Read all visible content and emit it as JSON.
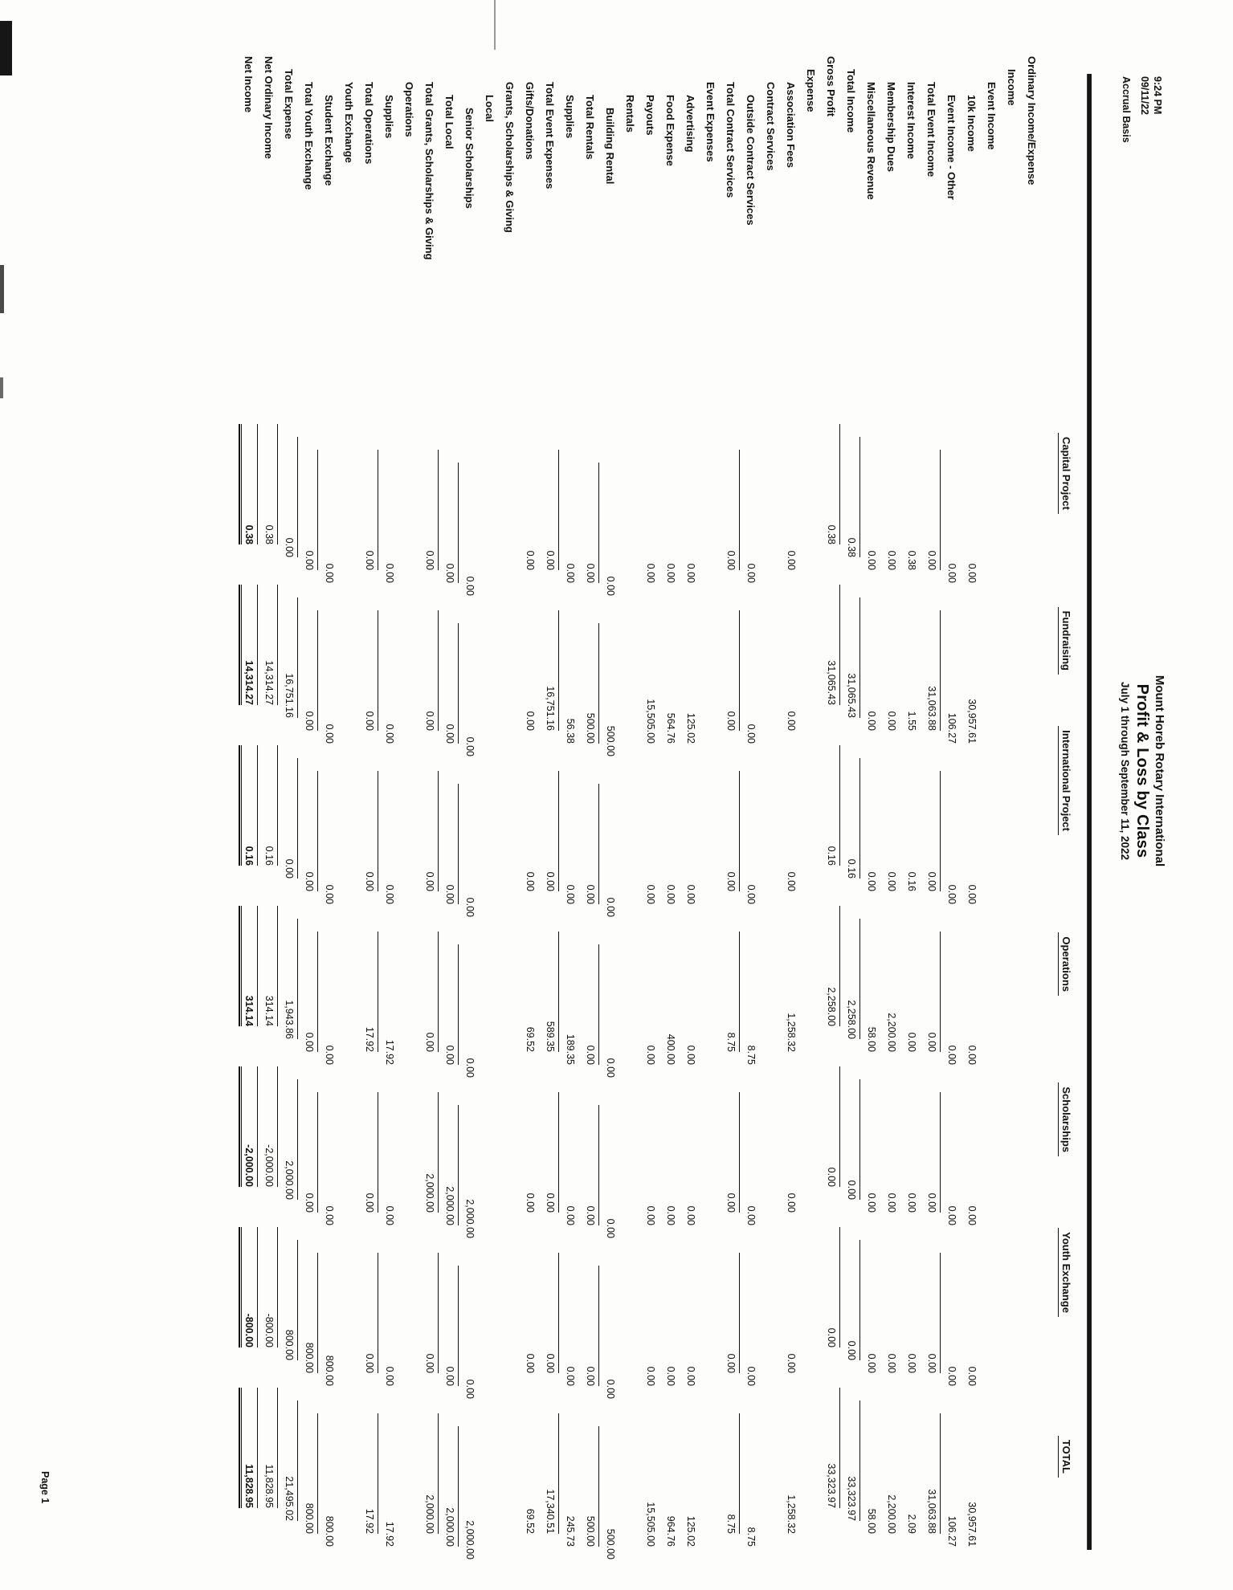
{
  "report": {
    "generated_time": "9:24 PM",
    "generated_date": "09/11/22",
    "basis": "Accrual Basis",
    "company": "Mount Horeb Rotary International",
    "title": "Profit & Loss by Class",
    "date_range": "July 1 through September 11, 2022",
    "page_label": "Page 1",
    "columns": [
      "Capital Project",
      "Fundraising",
      "International Project",
      "Operations",
      "Scholarships",
      "Youth Exchange",
      "TOTAL"
    ],
    "rows": [
      {
        "label": "Ordinary Income/Expense",
        "indent": 0,
        "values": null
      },
      {
        "label": "Income",
        "indent": 1,
        "values": null
      },
      {
        "label": "Event Income",
        "indent": 2,
        "values": null
      },
      {
        "label": "10k Income",
        "indent": 3,
        "values": [
          "0.00",
          "30,957.61",
          "0.00",
          "0.00",
          "0.00",
          "0.00",
          "30,957.61"
        ]
      },
      {
        "label": "Event Income - Other",
        "indent": 3,
        "values": [
          "0.00",
          "106.27",
          "0.00",
          "0.00",
          "0.00",
          "0.00",
          "106.27"
        ]
      },
      {
        "label": "Total Event Income",
        "indent": 2,
        "values": [
          "0.00",
          "31,063.88",
          "0.00",
          "0.00",
          "0.00",
          "0.00",
          "31,063.88"
        ],
        "line_above": true
      },
      {
        "label": "Interest Income",
        "indent": 2,
        "values": [
          "0.38",
          "1.55",
          "0.16",
          "0.00",
          "0.00",
          "0.00",
          "2.09"
        ]
      },
      {
        "label": "Membership Dues",
        "indent": 2,
        "values": [
          "0.00",
          "0.00",
          "0.00",
          "2,200.00",
          "0.00",
          "0.00",
          "2,200.00"
        ]
      },
      {
        "label": "Miscellaneous Revenue",
        "indent": 2,
        "values": [
          "0.00",
          "0.00",
          "0.00",
          "58.00",
          "0.00",
          "0.00",
          "58.00"
        ]
      },
      {
        "label": "Total Income",
        "indent": 1,
        "values": [
          "0.38",
          "31,065.43",
          "0.16",
          "2,258.00",
          "0.00",
          "0.00",
          "33,323.97"
        ],
        "line_above": true
      },
      {
        "label": "Gross Profit",
        "indent": 0,
        "values": [
          "0.38",
          "31,065.43",
          "0.16",
          "2,258.00",
          "0.00",
          "0.00",
          "33,323.97"
        ],
        "line_above": true
      },
      {
        "label": "Expense",
        "indent": 1,
        "values": null
      },
      {
        "label": "Association Fees",
        "indent": 2,
        "values": [
          "0.00",
          "0.00",
          "0.00",
          "1,258.32",
          "0.00",
          "0.00",
          "1,258.32"
        ]
      },
      {
        "label": "Contract Services",
        "indent": 2,
        "values": null
      },
      {
        "label": "Outside Contract Services",
        "indent": 3,
        "values": [
          "0.00",
          "0.00",
          "0.00",
          "8.75",
          "0.00",
          "0.00",
          "8.75"
        ]
      },
      {
        "label": "Total Contract Services",
        "indent": 2,
        "values": [
          "0.00",
          "0.00",
          "0.00",
          "8.75",
          "0.00",
          "0.00",
          "8.75"
        ],
        "line_above": true
      },
      {
        "label": "Event Expenses",
        "indent": 2,
        "values": null
      },
      {
        "label": "Advertising",
        "indent": 3,
        "values": [
          "0.00",
          "125.02",
          "0.00",
          "0.00",
          "0.00",
          "0.00",
          "125.02"
        ]
      },
      {
        "label": "Food Expense",
        "indent": 3,
        "values": [
          "0.00",
          "564.76",
          "0.00",
          "400.00",
          "0.00",
          "0.00",
          "964.76"
        ]
      },
      {
        "label": "Payouts",
        "indent": 3,
        "values": [
          "0.00",
          "15,505.00",
          "0.00",
          "0.00",
          "0.00",
          "0.00",
          "15,505.00"
        ]
      },
      {
        "label": "Rentals",
        "indent": 3,
        "values": null
      },
      {
        "label": "Building Rental",
        "indent": 4,
        "values": [
          "0.00",
          "500.00",
          "0.00",
          "0.00",
          "0.00",
          "0.00",
          "500.00"
        ]
      },
      {
        "label": "Total Rentals",
        "indent": 3,
        "values": [
          "0.00",
          "500.00",
          "0.00",
          "0.00",
          "0.00",
          "0.00",
          "500.00"
        ],
        "line_above": true
      },
      {
        "label": "Supplies",
        "indent": 3,
        "values": [
          "0.00",
          "56.38",
          "0.00",
          "189.35",
          "0.00",
          "0.00",
          "245.73"
        ]
      },
      {
        "label": "Total Event Expenses",
        "indent": 2,
        "values": [
          "0.00",
          "16,751.16",
          "0.00",
          "589.35",
          "0.00",
          "0.00",
          "17,340.51"
        ],
        "line_above": true
      },
      {
        "label": "Gifts/Donations",
        "indent": 2,
        "values": [
          "0.00",
          "0.00",
          "0.00",
          "69.52",
          "0.00",
          "0.00",
          "69.52"
        ]
      },
      {
        "label": "Grants, Scholarships & Giving",
        "indent": 2,
        "values": null
      },
      {
        "label": "Local",
        "indent": 3,
        "values": null
      },
      {
        "label": "Senior Scholarships",
        "indent": 4,
        "values": [
          "0.00",
          "0.00",
          "0.00",
          "0.00",
          "2,000.00",
          "0.00",
          "2,000.00"
        ]
      },
      {
        "label": "Total Local",
        "indent": 3,
        "values": [
          "0.00",
          "0.00",
          "0.00",
          "0.00",
          "2,000.00",
          "0.00",
          "2,000.00"
        ],
        "line_above": true
      },
      {
        "label": "Total Grants, Scholarships & Giving",
        "indent": 2,
        "values": [
          "0.00",
          "0.00",
          "0.00",
          "0.00",
          "2,000.00",
          "0.00",
          "2,000.00"
        ],
        "line_above": true
      },
      {
        "label": "Operations",
        "indent": 2,
        "values": null
      },
      {
        "label": "Supplies",
        "indent": 3,
        "values": [
          "0.00",
          "0.00",
          "0.00",
          "17.92",
          "0.00",
          "0.00",
          "17.92"
        ]
      },
      {
        "label": "Total Operations",
        "indent": 2,
        "values": [
          "0.00",
          "0.00",
          "0.00",
          "17.92",
          "0.00",
          "0.00",
          "17.92"
        ],
        "line_above": true
      },
      {
        "label": "Youth Exchange",
        "indent": 2,
        "values": null
      },
      {
        "label": "Student Exchange",
        "indent": 3,
        "values": [
          "0.00",
          "0.00",
          "0.00",
          "0.00",
          "0.00",
          "800.00",
          "800.00"
        ]
      },
      {
        "label": "Total Youth Exchange",
        "indent": 2,
        "values": [
          "0.00",
          "0.00",
          "0.00",
          "0.00",
          "0.00",
          "800.00",
          "800.00"
        ],
        "line_above": true
      },
      {
        "label": "Total Expense",
        "indent": 1,
        "values": [
          "0.00",
          "16,751.16",
          "0.00",
          "1,943.86",
          "2,000.00",
          "800.00",
          "21,495.02"
        ],
        "line_above": true
      },
      {
        "label": "Net Ordinary Income",
        "indent": 0,
        "values": [
          "0.38",
          "14,314.27",
          "0.16",
          "314.14",
          "-2,000.00",
          "-800.00",
          "11,828.95"
        ],
        "line_above": true
      },
      {
        "label": "Net Income",
        "indent": 0,
        "values": [
          "0.38",
          "14,314.27",
          "0.16",
          "314.14",
          "-2,000.00",
          "-800.00",
          "11,828.95"
        ],
        "line_above": true,
        "bold": true,
        "double_under": true
      }
    ]
  }
}
